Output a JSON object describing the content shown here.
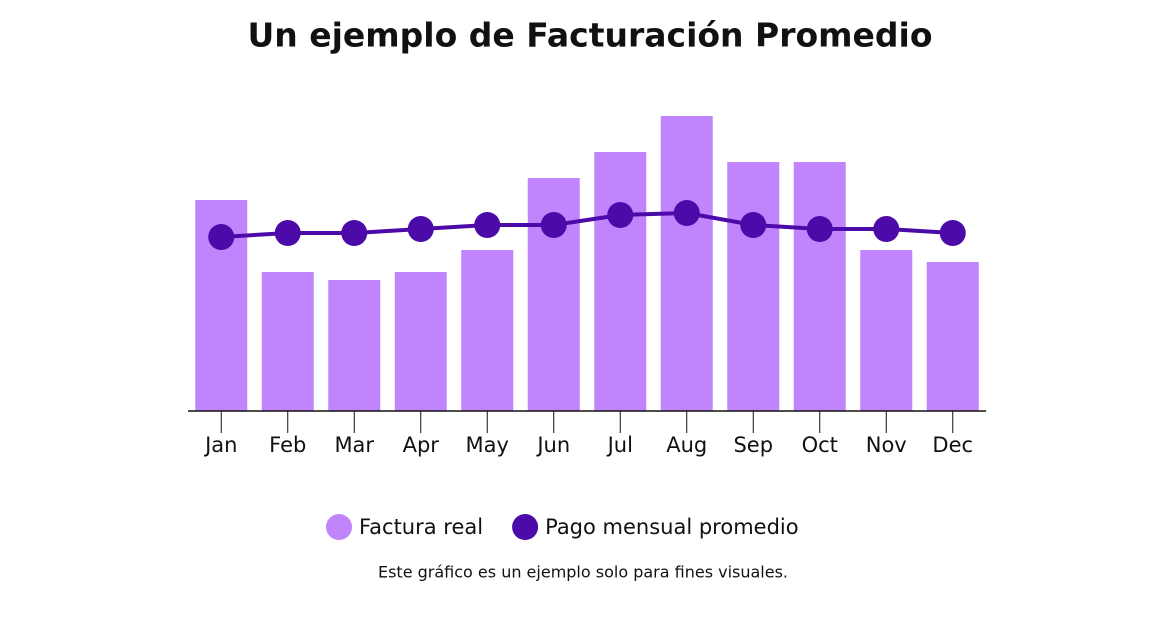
{
  "chart_data": {
    "type": "bar-line",
    "title": "Un ejemplo de Facturación Promedio",
    "note": "Este gráfico es un ejemplo solo para fines visuales.",
    "categories": [
      "Jan",
      "Feb",
      "Mar",
      "Apr",
      "May",
      "Jun",
      "Jul",
      "Aug",
      "Sep",
      "Oct",
      "Nov",
      "Dec"
    ],
    "series": [
      {
        "name": "Factura real",
        "type": "bar",
        "color": "#c084fc",
        "values": [
          211,
          139,
          131,
          139,
          161,
          233,
          259,
          295,
          249,
          249,
          161,
          149
        ]
      },
      {
        "name": "Pago mensual promedio",
        "type": "line",
        "color": "#4c0aa8",
        "values": [
          174,
          178,
          178,
          182,
          186,
          186,
          196,
          198,
          186,
          182,
          182,
          178
        ]
      }
    ],
    "ylim": [
      0,
      300
    ]
  }
}
